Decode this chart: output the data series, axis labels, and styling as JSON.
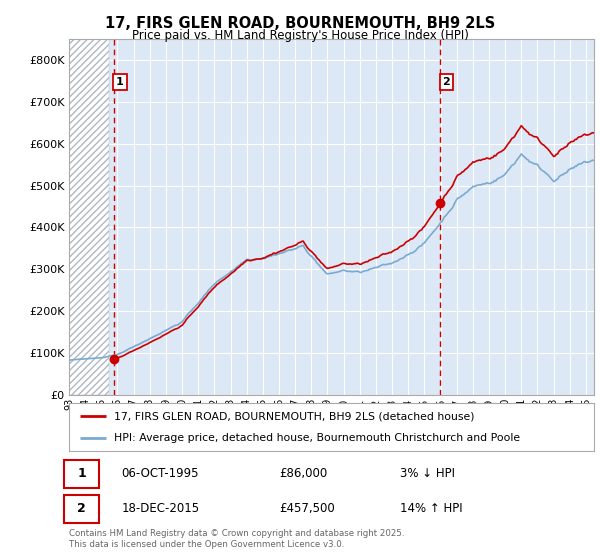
{
  "title_line1": "17, FIRS GLEN ROAD, BOURNEMOUTH, BH9 2LS",
  "title_line2": "Price paid vs. HM Land Registry's House Price Index (HPI)",
  "ylim": [
    0,
    850000
  ],
  "yticks": [
    0,
    100000,
    200000,
    300000,
    400000,
    500000,
    600000,
    700000,
    800000
  ],
  "ytick_labels": [
    "£0",
    "£100K",
    "£200K",
    "£300K",
    "£400K",
    "£500K",
    "£600K",
    "£700K",
    "£800K"
  ],
  "background_color": "#ffffff",
  "plot_bg_color": "#dce8f5",
  "hatch_bg_color": "#ffffff",
  "grid_color": "#ffffff",
  "sale1_date": 1995.77,
  "sale1_price": 86000,
  "sale1_label": "1",
  "sale2_date": 2015.96,
  "sale2_price": 457500,
  "sale2_label": "2",
  "sale_marker_color": "#cc0000",
  "vline_color": "#cc0000",
  "line1_color": "#cc0000",
  "line2_color": "#7aaad0",
  "legend1_label": "17, FIRS GLEN ROAD, BOURNEMOUTH, BH9 2LS (detached house)",
  "legend2_label": "HPI: Average price, detached house, Bournemouth Christchurch and Poole",
  "note1_num": "1",
  "note1_date": "06-OCT-1995",
  "note1_price": "£86,000",
  "note1_pct": "3% ↓ HPI",
  "note2_num": "2",
  "note2_date": "18-DEC-2015",
  "note2_price": "£457,500",
  "note2_pct": "14% ↑ HPI",
  "footer": "Contains HM Land Registry data © Crown copyright and database right 2025.\nThis data is licensed under the Open Government Licence v3.0.",
  "xmin": 1993.0,
  "xmax": 2025.5
}
